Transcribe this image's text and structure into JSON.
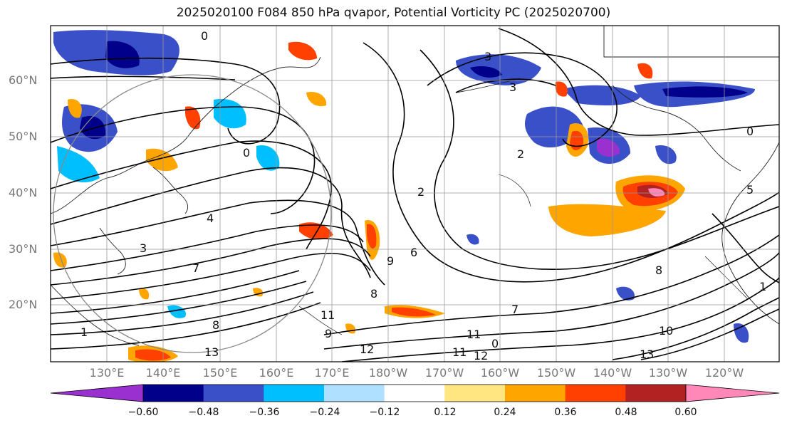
{
  "title": "2025020100 F084 850 hPa qvapor, Potential Vorticity PC (2025020700)",
  "lat_labels": [
    "60°N",
    "50°N",
    "40°N",
    "30°N",
    "20°N"
  ],
  "lon_labels": [
    "130°E",
    "140°E",
    "150°E",
    "160°E",
    "170°E",
    "180°W",
    "170°W",
    "160°W",
    "150°W",
    "140°W",
    "130°W",
    "120°W"
  ],
  "colorbar": {
    "colors": [
      "#9b30d0",
      "#00008b",
      "#3a50c8",
      "#00bfff",
      "#b0e0ff",
      "#ffffff",
      "#ffe680",
      "#ffa500",
      "#ff4000",
      "#b22222",
      "#ff88b8"
    ],
    "ticks": [
      "−0.60",
      "−0.48",
      "−0.36",
      "−0.24",
      "−0.12",
      "0.12",
      "0.24",
      "0.36",
      "0.48",
      "0.60"
    ]
  },
  "contour_labels": [
    "0",
    "0",
    "0",
    "0",
    "2",
    "2",
    "3",
    "3",
    "3",
    "4",
    "5",
    "6",
    "7",
    "7",
    "8",
    "8",
    "8",
    "9",
    "9",
    "10",
    "11",
    "11",
    "11",
    "12",
    "12",
    "13",
    "13",
    "1",
    "1"
  ]
}
